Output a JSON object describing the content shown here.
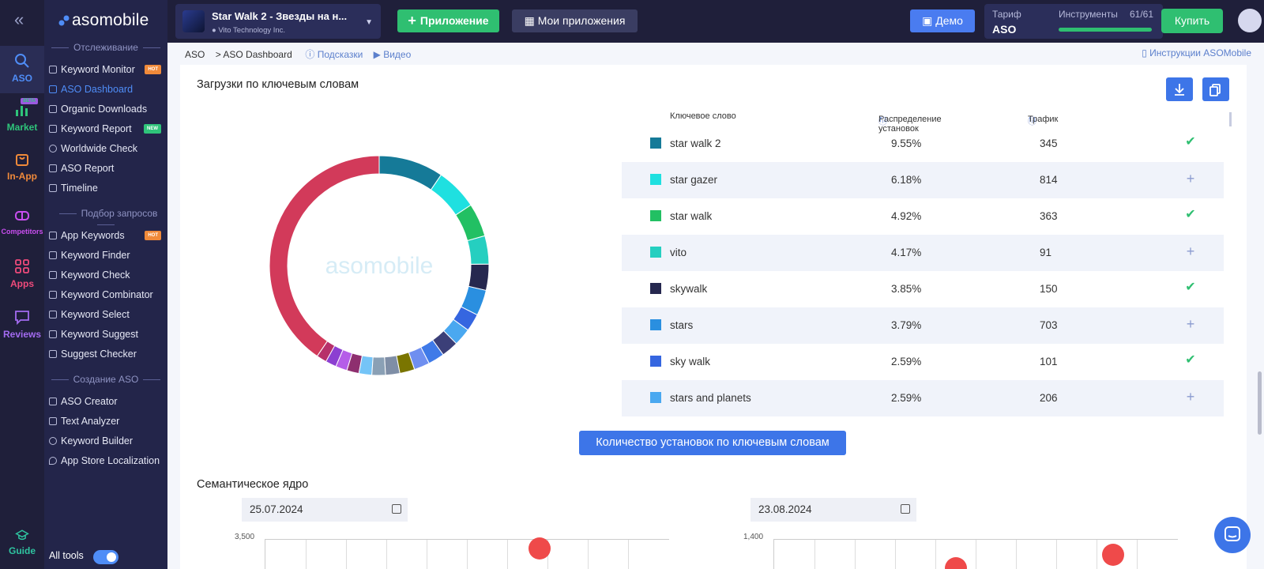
{
  "rail": {
    "items": [
      {
        "label": "ASO",
        "color": "#4f8df7"
      },
      {
        "label": "Market",
        "color": "#2fc47a",
        "badge": "BETA"
      },
      {
        "label": "In-App",
        "color": "#f08a3a"
      },
      {
        "label": "Competitors",
        "color": "#c94ef0"
      },
      {
        "label": "Apps",
        "color": "#ef4a7b"
      },
      {
        "label": "Reviews",
        "color": "#a36bf0"
      },
      {
        "label": "Guide",
        "color": "#2fc4a0"
      }
    ]
  },
  "sidebar": {
    "logo": "asomobile",
    "section1": "Отслеживание",
    "section2": "Подбор запросов",
    "section3": "Создание ASO",
    "items": [
      {
        "label": "Keyword Monitor",
        "badge": "HOT"
      },
      {
        "label": "ASO Dashboard"
      },
      {
        "label": "Organic Downloads"
      },
      {
        "label": "Keyword Report",
        "badge": "NEW"
      },
      {
        "label": "Worldwide Check"
      },
      {
        "label": "ASO Report"
      },
      {
        "label": "Timeline"
      },
      {
        "label": "App Keywords",
        "badge": "HOT"
      },
      {
        "label": "Keyword Finder"
      },
      {
        "label": "Keyword Check"
      },
      {
        "label": "Keyword Combinator"
      },
      {
        "label": "Keyword Select"
      },
      {
        "label": "Keyword Suggest"
      },
      {
        "label": "Suggest Checker"
      },
      {
        "label": "ASO Creator"
      },
      {
        "label": "Text Analyzer"
      },
      {
        "label": "Keyword Builder"
      },
      {
        "label": "App Store Localization"
      }
    ],
    "all_tools": "All tools"
  },
  "topbar": {
    "app_title": "Star Walk 2 - Звезды на н...",
    "app_dev": "Vito Technology Inc.",
    "add_app": "Приложение",
    "my_apps": "Мои приложения",
    "demo": "Демо",
    "tarif_label": "Тариф",
    "tarif_value": "ASO",
    "tools_label": "Инструменты",
    "tools_count": "61/61",
    "buy": "Купить"
  },
  "breadcrumb": {
    "root": "ASO",
    "current": "> ASO Dashboard",
    "hints": "Подсказки",
    "video": "Видео",
    "instructions": "Инструкции ASOMobile"
  },
  "downloads": {
    "title": "Загрузки по ключевым словам",
    "watermark": "asomobile",
    "col_keyword": "Ключевое слово",
    "col_dist": "Распределение установок",
    "col_traffic": "Трафик",
    "rows": [
      {
        "keyword": "star walk 2",
        "pct": "9.55%",
        "traffic": "345",
        "color": "#157a98",
        "tracked": true
      },
      {
        "keyword": "star gazer",
        "pct": "6.18%",
        "traffic": "814",
        "color": "#1fe0e0",
        "tracked": false
      },
      {
        "keyword": "star walk",
        "pct": "4.92%",
        "traffic": "363",
        "color": "#22c063",
        "tracked": true
      },
      {
        "keyword": "vito",
        "pct": "4.17%",
        "traffic": "91",
        "color": "#25cfc0",
        "tracked": false
      },
      {
        "keyword": "skywalk",
        "pct": "3.85%",
        "traffic": "150",
        "color": "#26284f",
        "tracked": true
      },
      {
        "keyword": "stars",
        "pct": "3.79%",
        "traffic": "703",
        "color": "#2a8fe0",
        "tracked": false
      },
      {
        "keyword": "sky walk",
        "pct": "2.59%",
        "traffic": "101",
        "color": "#3566e0",
        "tracked": true
      },
      {
        "keyword": "stars and planets",
        "pct": "2.59%",
        "traffic": "206",
        "color": "#4aa8f0",
        "tracked": false
      }
    ],
    "button": "Количество установок по ключевым словам"
  },
  "semantic": {
    "title": "Семантическое ядро",
    "date_left": "25.07.2024",
    "date_right": "23.08.2024",
    "y_top_left": "3,500",
    "y_top_right": "1,400"
  },
  "donut": {
    "slices": [
      {
        "value": 9.55,
        "color": "#157a98"
      },
      {
        "value": 6.18,
        "color": "#1fe0e0"
      },
      {
        "value": 4.92,
        "color": "#22c063"
      },
      {
        "value": 4.17,
        "color": "#25cfc0"
      },
      {
        "value": 3.85,
        "color": "#26284f"
      },
      {
        "value": 3.79,
        "color": "#2a8fe0"
      },
      {
        "value": 2.59,
        "color": "#3566e0"
      },
      {
        "value": 2.59,
        "color": "#4aa8f0"
      },
      {
        "value": 2.5,
        "color": "#3b3f78"
      },
      {
        "value": 2.4,
        "color": "#3f7ae8"
      },
      {
        "value": 2.3,
        "color": "#6f8ff0"
      },
      {
        "value": 2.2,
        "color": "#7a7500"
      },
      {
        "value": 2.1,
        "color": "#7f8ea6"
      },
      {
        "value": 2.0,
        "color": "#8aa0b5"
      },
      {
        "value": 1.9,
        "color": "#74c4f7"
      },
      {
        "value": 1.8,
        "color": "#8e2f6f"
      },
      {
        "value": 1.7,
        "color": "#b55de8"
      },
      {
        "value": 1.6,
        "color": "#8c3fd1"
      },
      {
        "value": 1.5,
        "color": "#b7306a"
      },
      {
        "value": 40.5,
        "color": "#d23a5a"
      }
    ]
  }
}
